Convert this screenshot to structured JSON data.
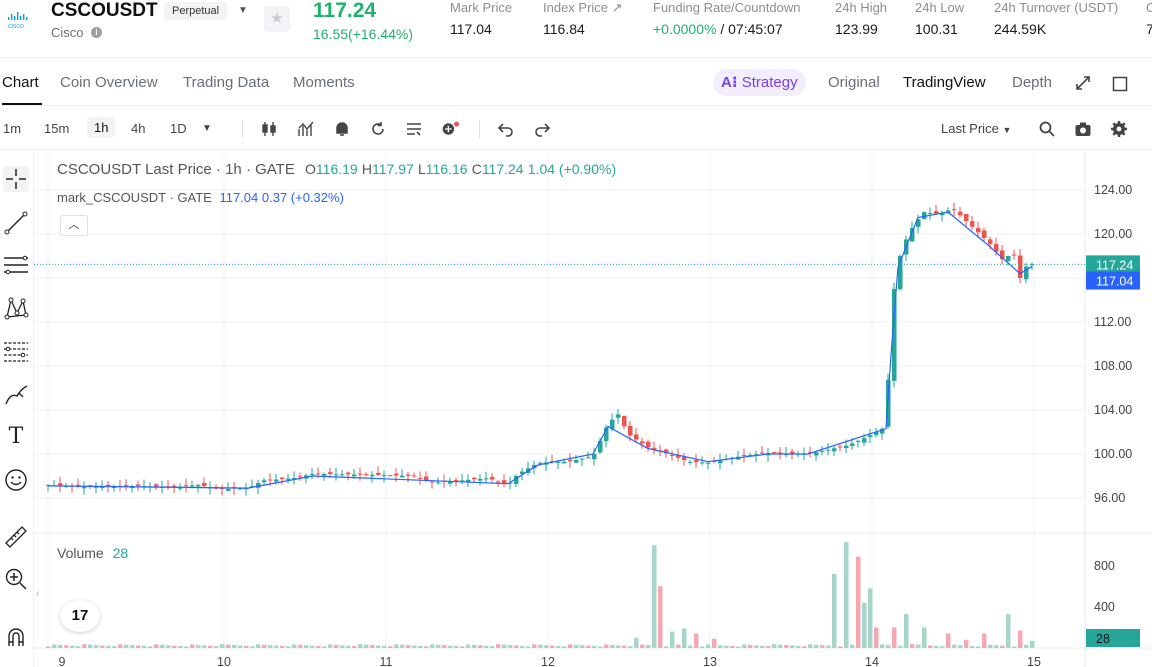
{
  "header": {
    "symbol": "CSCOUSDT",
    "contract_type": "Perpetual",
    "coin_name": "Cisco",
    "logo_text": "CISCO",
    "last_price": "117.24",
    "price_change": "16.55(+16.44%)",
    "stats": [
      {
        "label": "Mark Price",
        "value": "117.04"
      },
      {
        "label": "Index Price ↗",
        "value": "116.84"
      },
      {
        "label": "Funding Rate/Countdown",
        "value": "+0.0000%",
        "value2": " / 07:45:07"
      },
      {
        "label": "24h High",
        "value": "123.99"
      },
      {
        "label": "24h Low",
        "value": "100.31"
      },
      {
        "label": "24h Turnover (USDT)",
        "value": "244.59K"
      },
      {
        "label": "C",
        "value": "7"
      }
    ]
  },
  "tabs": {
    "left": [
      "Chart",
      "Coin Overview",
      "Trading Data",
      "Moments"
    ],
    "strategy": "Strategy",
    "right": [
      "Original",
      "TradingView",
      "Depth"
    ]
  },
  "toolbar": {
    "intervals": [
      "1m",
      "15m",
      "1h",
      "4h",
      "1D"
    ],
    "active_interval": "1h",
    "price_type": "Last Price"
  },
  "legend": {
    "title": "CSCOUSDT Last Price · 1h · GATE",
    "o_label": "O",
    "o": "116.19",
    "h_label": "H",
    "h": "117.97",
    "l_label": "L",
    "l": "116.16",
    "c_label": "C",
    "c": "117.24",
    "chg": "1.04 (+0.90%)",
    "mark_title": "mark_CSCOUSDT · GATE",
    "mark_val": "117.04",
    "mark_chg": "0.37 (+0.32%)",
    "volume_label": "Volume",
    "volume_val": "28",
    "tv_logo": "17"
  },
  "colors": {
    "up": "#26a69a",
    "down": "#ef5350",
    "up_vol": "#a5d6c9",
    "down_vol": "#f5a8b2",
    "mark": "#2962ff"
  },
  "chart_data": {
    "type": "candlestick",
    "price_axis": {
      "min": 96,
      "max": 124,
      "ticks": [
        "124.00",
        "120.00",
        "116.00",
        "112.00",
        "108.00",
        "104.00",
        "100.00",
        "96.00"
      ]
    },
    "volume_axis": {
      "ticks": [
        "800",
        "400"
      ]
    },
    "x_ticks": [
      "9",
      "10",
      "11",
      "12",
      "13",
      "14",
      "15"
    ],
    "last_price_label": "117.24",
    "mark_price_label": "117.04",
    "last_volume_label": "28",
    "close_path": [
      [
        0,
        97.2
      ],
      [
        40,
        97.0
      ],
      [
        90,
        97.1
      ],
      [
        130,
        97.0
      ],
      [
        150,
        97.2
      ],
      [
        170,
        96.8
      ],
      [
        200,
        96.9
      ],
      [
        215,
        97.6
      ],
      [
        245,
        97.8
      ],
      [
        265,
        98.2
      ],
      [
        330,
        98.1
      ],
      [
        365,
        98.0
      ],
      [
        385,
        97.4
      ],
      [
        440,
        97.8
      ],
      [
        460,
        97.2
      ],
      [
        470,
        98.2
      ],
      [
        490,
        99.2
      ],
      [
        520,
        99.3
      ],
      [
        545,
        99.8
      ],
      [
        560,
        102.8
      ],
      [
        570,
        103.6
      ],
      [
        580,
        101.8
      ],
      [
        600,
        100.6
      ],
      [
        620,
        100.0
      ],
      [
        640,
        99.3
      ],
      [
        660,
        99.2
      ],
      [
        680,
        99.6
      ],
      [
        700,
        99.9
      ],
      [
        720,
        100.1
      ],
      [
        760,
        100.0
      ],
      [
        780,
        100.4
      ],
      [
        800,
        100.8
      ],
      [
        820,
        101.6
      ],
      [
        838,
        102.5
      ],
      [
        842,
        111.0
      ],
      [
        848,
        117.0
      ],
      [
        860,
        120.0
      ],
      [
        875,
        122.0
      ],
      [
        890,
        121.8
      ],
      [
        905,
        122.3
      ],
      [
        920,
        121.0
      ],
      [
        940,
        119.3
      ],
      [
        955,
        117.6
      ],
      [
        965,
        118.4
      ],
      [
        972,
        116.0
      ],
      [
        980,
        117.4
      ],
      [
        984,
        117.24
      ]
    ],
    "mark_path": [
      [
        0,
        97.1
      ],
      [
        200,
        96.9
      ],
      [
        265,
        98.0
      ],
      [
        460,
        97.3
      ],
      [
        490,
        99.0
      ],
      [
        545,
        100.0
      ],
      [
        560,
        102.5
      ],
      [
        600,
        100.5
      ],
      [
        660,
        99.3
      ],
      [
        720,
        100.0
      ],
      [
        760,
        100.0
      ],
      [
        838,
        102.3
      ],
      [
        843,
        109.0
      ],
      [
        850,
        117.0
      ],
      [
        870,
        121.5
      ],
      [
        900,
        122.0
      ],
      [
        940,
        119.0
      ],
      [
        972,
        116.4
      ],
      [
        984,
        117.04
      ]
    ],
    "volume": [
      [
        590,
        100
      ],
      [
        605,
        1000
      ],
      [
        612,
        600
      ],
      [
        622,
        160
      ],
      [
        635,
        190
      ],
      [
        650,
        140
      ],
      [
        665,
        90
      ],
      [
        785,
        720
      ],
      [
        795,
        880
      ],
      [
        800,
        1030
      ],
      [
        808,
        890
      ],
      [
        815,
        440
      ],
      [
        823,
        580
      ],
      [
        830,
        200
      ],
      [
        845,
        200
      ],
      [
        860,
        330
      ],
      [
        875,
        200
      ],
      [
        885,
        140
      ],
      [
        900,
        140
      ],
      [
        920,
        80
      ],
      [
        938,
        140
      ],
      [
        945,
        120
      ],
      [
        958,
        330
      ],
      [
        970,
        170
      ],
      [
        985,
        70
      ]
    ]
  }
}
